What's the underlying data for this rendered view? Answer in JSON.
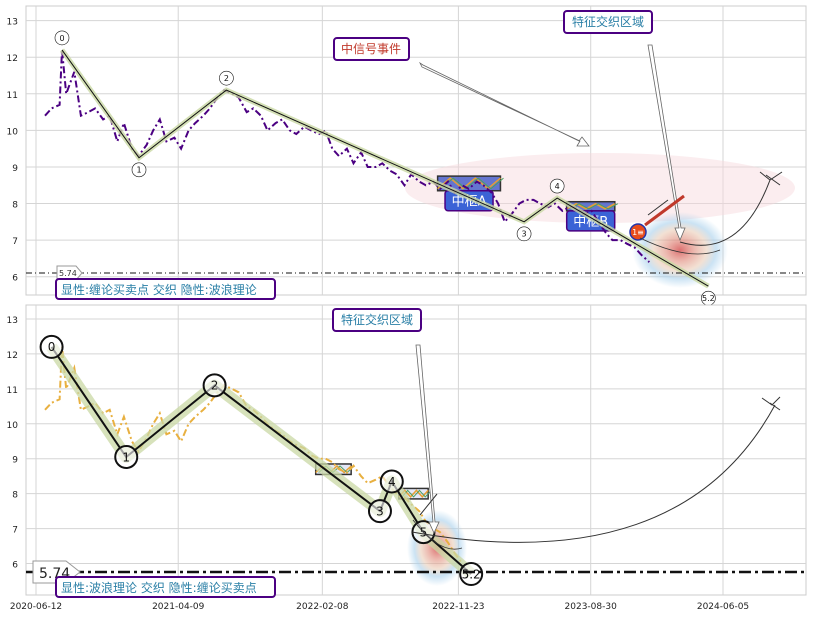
{
  "chart_data": [
    {
      "type": "line",
      "panel": "top",
      "ylim": [
        5.5,
        13.4
      ],
      "yticks": [
        6,
        7,
        8,
        9,
        10,
        11,
        12,
        13
      ],
      "price_series": {
        "name": "",
        "color": "#4b0082",
        "x": [
          "2020-07-01",
          "2020-07-15",
          "2020-08-01",
          "2020-08-06",
          "2020-08-15",
          "2020-09-01",
          "2020-09-15",
          "2020-10-01",
          "2020-10-15",
          "2020-11-01",
          "2020-11-15",
          "2020-12-01",
          "2020-12-15",
          "2021-01-01",
          "2021-01-15",
          "2021-02-01",
          "2021-02-15",
          "2021-03-01",
          "2021-03-15",
          "2021-04-01",
          "2021-04-15",
          "2021-05-01",
          "2021-05-15",
          "2021-06-01",
          "2021-06-15",
          "2021-07-01",
          "2021-07-15",
          "2021-08-01",
          "2021-08-15",
          "2021-09-01",
          "2021-09-15",
          "2021-10-01",
          "2021-10-15",
          "2021-11-01",
          "2021-11-15",
          "2021-12-01",
          "2021-12-15",
          "2022-01-01",
          "2022-01-15",
          "2022-02-01",
          "2022-02-15",
          "2022-03-01",
          "2022-03-15",
          "2022-04-01",
          "2022-04-15",
          "2022-05-01",
          "2022-05-15",
          "2022-06-01",
          "2022-06-15",
          "2022-07-01",
          "2022-07-15",
          "2022-08-01",
          "2022-08-15",
          "2022-09-01",
          "2022-09-15",
          "2022-10-01",
          "2022-10-15",
          "2022-11-01",
          "2022-11-15",
          "2022-12-01",
          "2022-12-15",
          "2023-01-01",
          "2023-01-15",
          "2023-02-01",
          "2023-02-15",
          "2023-03-01",
          "2023-03-15",
          "2023-04-01",
          "2023-04-15",
          "2023-05-01",
          "2023-05-15",
          "2023-06-01",
          "2023-06-15",
          "2023-07-01",
          "2023-07-15",
          "2023-08-01",
          "2023-08-15",
          "2023-09-01",
          "2023-09-15",
          "2023-10-01",
          "2023-10-15",
          "2023-11-01",
          "2023-11-15",
          "2023-12-01",
          "2023-12-15",
          "2024-01-01"
        ],
        "y": [
          10.4,
          10.6,
          10.7,
          12.2,
          11.0,
          11.6,
          10.4,
          10.5,
          10.6,
          10.3,
          10.4,
          9.7,
          10.2,
          9.5,
          9.3,
          9.6,
          10.0,
          10.3,
          9.7,
          9.8,
          9.5,
          10.0,
          10.2,
          10.4,
          10.6,
          10.9,
          11.1,
          11.0,
          10.9,
          10.5,
          10.6,
          10.4,
          10.0,
          10.2,
          10.3,
          10.0,
          9.9,
          10.1,
          10.0,
          9.9,
          10.0,
          9.5,
          9.3,
          9.5,
          9.1,
          9.4,
          9.0,
          9.0,
          9.1,
          8.9,
          8.8,
          8.5,
          8.8,
          8.6,
          8.5,
          8.6,
          8.4,
          8.6,
          8.3,
          8.5,
          8.4,
          8.6,
          8.5,
          8.3,
          8.0,
          7.5,
          7.7,
          8.0,
          8.1,
          8.1,
          8.0,
          7.9,
          8.0,
          7.8,
          7.9,
          7.9,
          7.7,
          7.8,
          7.5,
          7.2,
          7.0,
          7.0,
          6.9,
          6.8,
          6.6,
          6.4
        ]
      },
      "stroke_series": {
        "x": [
          "2020-08-06",
          "2021-01-16",
          "2021-07-20",
          "2023-04-11",
          "2023-06-20",
          "2024-05-05"
        ],
        "y": [
          12.2,
          9.25,
          11.1,
          7.5,
          8.15,
          5.74
        ]
      },
      "stroke_labels": [
        "0",
        "1",
        "2",
        "3",
        "4",
        "5.2"
      ],
      "zones": [
        {
          "label": "中枢A",
          "x0": "2022-10-10",
          "x1": "2023-02-20",
          "y0": 8.35,
          "y1": 8.75
        },
        {
          "label": "中枢B",
          "x0": "2023-07-10",
          "x1": "2023-10-20",
          "y0": 7.8,
          "y1": 8.05
        }
      ],
      "buy_marker": {
        "label": "1≡",
        "x": "2023-12-20",
        "y": 6.9
      },
      "reference_line": {
        "y": 5.74,
        "label": "5.74"
      },
      "annotations": {
        "signal_event": "中信号事件",
        "feature_zone": "特征交织区域",
        "legend": "显性:缠论买卖点 交织 隐性:波浪理论"
      }
    },
    {
      "type": "line",
      "panel": "bottom",
      "ylim": [
        5.1,
        13.4
      ],
      "yticks": [
        6,
        7,
        8,
        9,
        10,
        11,
        12,
        13
      ],
      "xticks": [
        "2020-06-12",
        "2021-04-09",
        "2022-02-08",
        "2022-11-23",
        "2023-08-30",
        "2024-06-05"
      ],
      "price_series": {
        "name": "",
        "color": "#e8b040",
        "x": [
          "2020-07-01",
          "2020-07-15",
          "2020-08-01",
          "2020-08-06",
          "2020-08-15",
          "2020-09-01",
          "2020-09-15",
          "2020-10-01",
          "2020-10-15",
          "2020-11-01",
          "2020-11-15",
          "2020-12-01",
          "2020-12-15",
          "2021-01-01",
          "2021-01-15",
          "2021-02-01",
          "2021-02-15",
          "2021-03-01",
          "2021-03-15",
          "2021-04-01",
          "2021-04-15",
          "2021-05-01",
          "2021-05-15",
          "2021-06-01",
          "2021-06-15",
          "2021-07-01",
          "2021-07-15",
          "2021-08-01",
          "2021-08-15",
          "2021-09-01",
          "2021-09-15",
          "2021-10-01",
          "2021-10-15",
          "2021-11-01",
          "2021-11-15",
          "2021-12-01",
          "2021-12-15",
          "2022-01-01",
          "2022-01-15",
          "2022-02-01",
          "2022-02-15",
          "2022-03-01",
          "2022-03-15",
          "2022-04-01",
          "2022-04-15",
          "2022-05-01",
          "2022-05-15",
          "2022-06-01",
          "2022-06-15",
          "2022-07-01",
          "2022-07-15",
          "2022-08-01",
          "2022-08-15",
          "2022-09-01",
          "2022-09-15",
          "2022-10-01",
          "2022-10-15",
          "2022-11-01",
          "2022-11-15",
          "2022-12-01"
        ],
        "y": [
          10.4,
          10.6,
          10.7,
          12.2,
          11.0,
          11.6,
          10.4,
          10.5,
          10.6,
          10.3,
          10.4,
          9.7,
          10.2,
          9.5,
          9.2,
          9.6,
          10.0,
          10.3,
          9.7,
          9.8,
          9.5,
          10.0,
          10.2,
          10.4,
          10.6,
          10.9,
          11.1,
          11.0,
          10.9,
          10.5,
          10.4,
          10.2,
          10.0,
          9.8,
          9.7,
          9.5,
          9.4,
          9.3,
          9.1,
          9.0,
          9.0,
          8.9,
          8.7,
          8.6,
          8.8,
          8.5,
          8.3,
          8.4,
          8.5,
          8.2,
          8.0,
          7.9,
          7.7,
          7.5,
          7.2,
          7.0,
          6.9,
          6.6,
          6.3,
          6.0
        ]
      },
      "stroke_series": {
        "x": [
          "2020-07-15",
          "2020-12-20",
          "2021-06-25",
          "2022-06-10",
          "2022-07-05",
          "2022-09-10",
          "2022-12-20"
        ],
        "y": [
          12.2,
          9.05,
          11.1,
          7.5,
          8.35,
          6.9,
          5.7
        ]
      },
      "stroke_labels": [
        "0",
        "1",
        "2",
        "3",
        "4",
        "5",
        "5.2"
      ],
      "zones": [
        {
          "label": "",
          "x0": "2022-01-25",
          "x1": "2022-04-10",
          "y0": 8.55,
          "y1": 8.85
        },
        {
          "label": "",
          "x0": "2022-07-20",
          "x1": "2022-09-20",
          "y0": 7.85,
          "y1": 8.15
        }
      ],
      "reference_line": {
        "y": 5.74,
        "label": "5.74"
      },
      "annotations": {
        "feature_zone": "特征交织区域",
        "legend": "显性:波浪理论 交织 隐性:缠论买卖点"
      }
    }
  ],
  "colors": {
    "grid": "#d5d5d5",
    "axis": "#222222",
    "stroke_line": "#111111",
    "stroke_halo": "#c9d8a4",
    "box_border": "#4b0082",
    "signal_text": "#c0392b",
    "feature_text": "#2a7fa6",
    "zone_fill": "#4a5fc9"
  }
}
